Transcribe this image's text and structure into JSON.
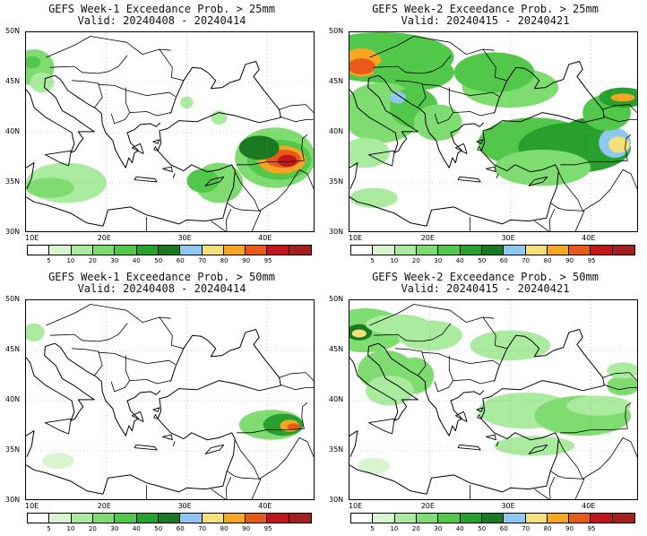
{
  "panels": [
    {
      "title": "GEFS Week-1 Exceedance Prob. > 25mm",
      "valid": "Valid: 20240408 - 20240414"
    },
    {
      "title": "GEFS Week-2 Exceedance Prob. > 25mm",
      "valid": "Valid: 20240415 - 20240421"
    },
    {
      "title": "GEFS Week-1 Exceedance Prob. > 50mm",
      "valid": "Valid: 20240408 - 20240414"
    },
    {
      "title": "GEFS Week-2 Exceedance Prob. > 50mm",
      "valid": "Valid: 20240415 - 20240421"
    }
  ],
  "axes": {
    "lat_labels": [
      "50N",
      "45N",
      "40N",
      "35N",
      "30N"
    ],
    "lon_labels": [
      "10E",
      "20E",
      "30E",
      "40E"
    ]
  },
  "colorbar": {
    "labels": [
      "5",
      "10",
      "20",
      "30",
      "40",
      "50",
      "60",
      "70",
      "80",
      "90",
      "95"
    ],
    "colors": [
      "#ffffff",
      "#d9f5d0",
      "#aaeba0",
      "#7fdc70",
      "#52c84a",
      "#27a02e",
      "#1a7a22",
      "#8ec8f0",
      "#f5e07a",
      "#f5a623",
      "#e85a1a",
      "#c2161b",
      "#a32020"
    ]
  }
}
